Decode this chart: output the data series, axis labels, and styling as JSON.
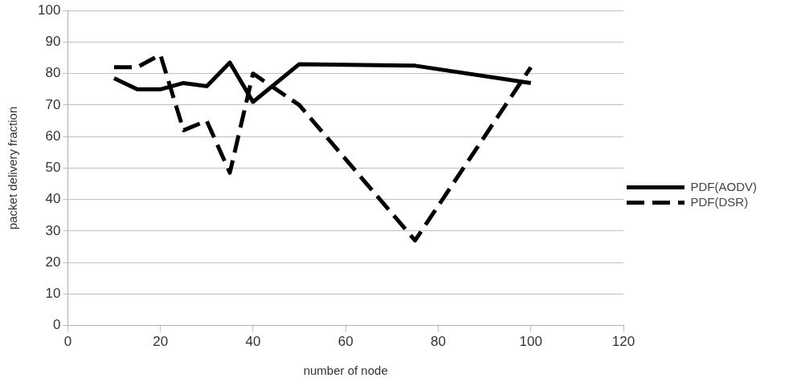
{
  "chart_data": {
    "type": "line",
    "xlabel": "number of node",
    "ylabel": "packet delivery fraction",
    "x": [
      10,
      15,
      20,
      25,
      30,
      35,
      40,
      50,
      75,
      100
    ],
    "series": [
      {
        "name": "PDF(AODV)",
        "color": "#000000",
        "line_style": "solid",
        "values": [
          78.5,
          75,
          75,
          77,
          76,
          83.5,
          71,
          83,
          82.5,
          77
        ]
      },
      {
        "name": "PDF(DSR)",
        "color": "#000000",
        "line_style": "dashed",
        "values": [
          82,
          82,
          86,
          62,
          65,
          48.5,
          80,
          70,
          27,
          82
        ]
      }
    ],
    "xlim": [
      0,
      120
    ],
    "xticks": [
      0,
      20,
      40,
      60,
      80,
      100,
      120
    ],
    "ylim": [
      0,
      100
    ],
    "yticks": [
      0,
      10,
      20,
      30,
      40,
      50,
      60,
      70,
      80,
      90,
      100
    ],
    "grid": "y",
    "legend": "right",
    "marker": "none"
  }
}
